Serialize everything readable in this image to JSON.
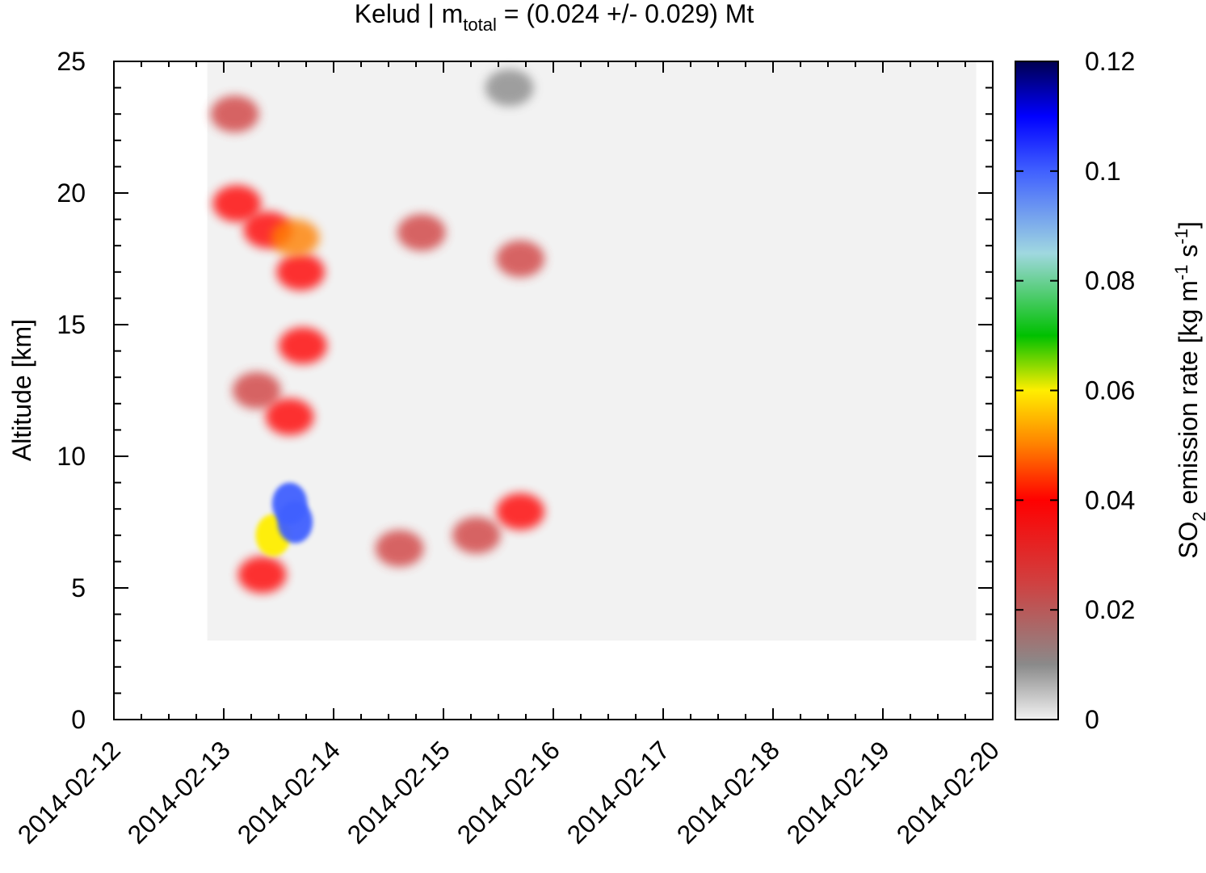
{
  "chart_data": {
    "type": "heatmap",
    "title": {
      "prefix": "Kelud | m",
      "subscript": "total",
      "suffix": " = (0.024 +/- 0.029) Mt"
    },
    "ylabel": "Altitude [km]",
    "colorbar_label": {
      "p1": "SO",
      "p1_sub": "2",
      "p2": " emission rate [kg m",
      "p2_sup": "-1",
      "p3": " s",
      "p3_sup": "-1",
      "p4": "]"
    },
    "x_ticks": [
      "2014-02-12",
      "2014-02-13",
      "2014-02-14",
      "2014-02-15",
      "2014-02-16",
      "2014-02-17",
      "2014-02-18",
      "2014-02-19",
      "2014-02-20"
    ],
    "xlim_days": [
      0,
      8
    ],
    "y_ticks": [
      "0",
      "5",
      "10",
      "15",
      "20",
      "25"
    ],
    "ylim": [
      0,
      25
    ],
    "colorbar_ticks": [
      "0",
      "0.02",
      "0.04",
      "0.06",
      "0.08",
      "0.1",
      "0.12"
    ],
    "colorbar_range": [
      0,
      0.12
    ],
    "colormap": [
      {
        "v": 0.0,
        "color": "#f2f2f2"
      },
      {
        "v": 0.01,
        "color": "#8a8a8a"
      },
      {
        "v": 0.025,
        "color": "#d04040"
      },
      {
        "v": 0.04,
        "color": "#ff0000"
      },
      {
        "v": 0.05,
        "color": "#ff8000"
      },
      {
        "v": 0.06,
        "color": "#ffee00"
      },
      {
        "v": 0.07,
        "color": "#00c000"
      },
      {
        "v": 0.085,
        "color": "#a0d8e0"
      },
      {
        "v": 0.1,
        "color": "#4060ff"
      },
      {
        "v": 0.11,
        "color": "#0000ff"
      },
      {
        "v": 0.12,
        "color": "#000050"
      }
    ],
    "data_extent": {
      "t0": 0.85,
      "t1": 7.85,
      "z0": 3.0,
      "z1": 25.0
    },
    "features": [
      {
        "t": 1.12,
        "z": 19.6,
        "value": 0.035
      },
      {
        "t": 1.4,
        "z": 18.6,
        "value": 0.04
      },
      {
        "t": 1.65,
        "z": 18.3,
        "value": 0.042
      },
      {
        "t": 1.7,
        "z": 17.0,
        "value": 0.04
      },
      {
        "t": 1.72,
        "z": 14.2,
        "value": 0.035
      },
      {
        "t": 1.6,
        "z": 11.5,
        "value": 0.03
      },
      {
        "t": 1.6,
        "z": 8.2,
        "value": 0.1
      },
      {
        "t": 1.65,
        "z": 7.5,
        "value": 0.09
      },
      {
        "t": 1.45,
        "z": 7.0,
        "value": 0.06
      },
      {
        "t": 1.35,
        "z": 5.5,
        "value": 0.035
      },
      {
        "t": 2.6,
        "z": 6.5,
        "value": 0.02
      },
      {
        "t": 3.3,
        "z": 7.0,
        "value": 0.025
      },
      {
        "t": 3.7,
        "z": 7.9,
        "value": 0.03
      },
      {
        "t": 3.7,
        "z": 17.5,
        "value": 0.018
      },
      {
        "t": 2.8,
        "z": 18.5,
        "value": 0.012
      },
      {
        "t": 1.1,
        "z": 23.0,
        "value": 0.012
      },
      {
        "t": 3.6,
        "z": 24.0,
        "value": 0.01
      },
      {
        "t": 1.3,
        "z": 12.5,
        "value": 0.015
      }
    ]
  }
}
